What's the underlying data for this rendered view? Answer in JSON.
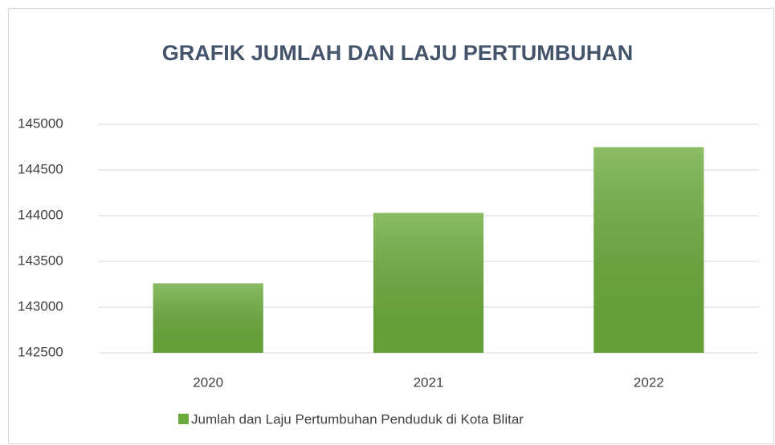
{
  "chart_data": {
    "type": "bar",
    "title": "GRAFIK  JUMLAH DAN LAJU PERTUMBUHAN",
    "categories": [
      "2020",
      "2021",
      "2022"
    ],
    "series": [
      {
        "name": "Jumlah dan Laju Pertumbuhan Penduduk di Kota Blitar",
        "color": "#6aaa3a",
        "values": [
          143260,
          144030,
          144750
        ]
      }
    ],
    "ylim": [
      142500,
      145000
    ],
    "yticks": [
      142500,
      143000,
      143500,
      144000,
      144500,
      145000
    ],
    "grid": true,
    "legend": "bottom"
  }
}
